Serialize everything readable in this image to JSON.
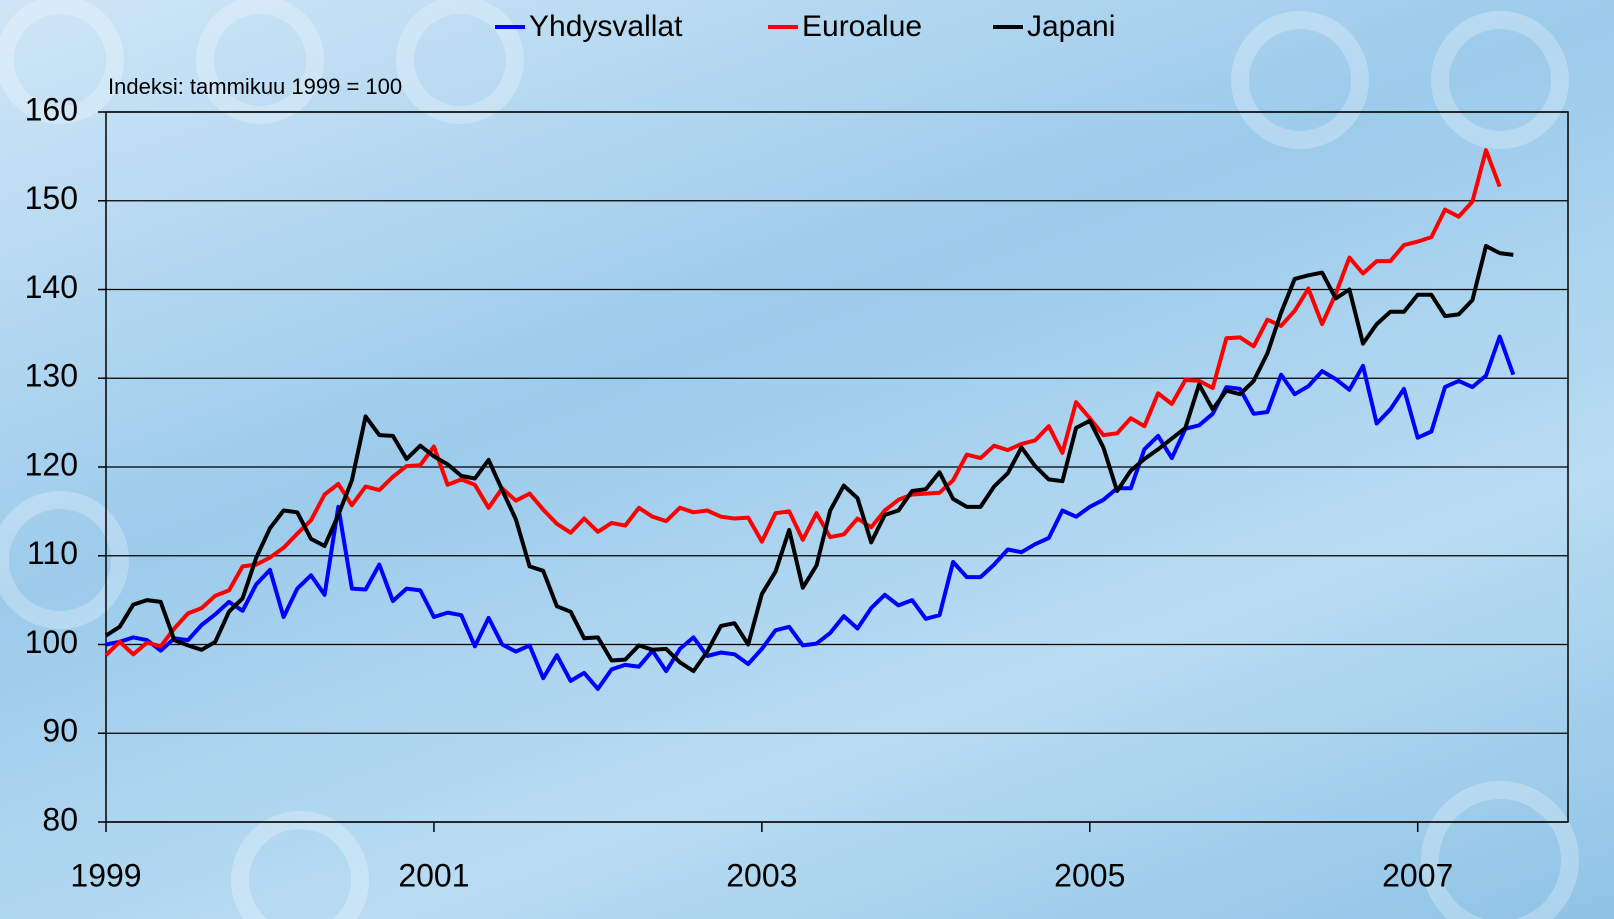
{
  "chart_data": {
    "type": "line",
    "subtitle": "Indeksi: tammikuu 1999 = 100",
    "categories": [
      "1999",
      null,
      null,
      null,
      null,
      null,
      null,
      null,
      null,
      null,
      null,
      null,
      null,
      null,
      null,
      null,
      null,
      null,
      null,
      null,
      null,
      null,
      null,
      null,
      "2001",
      null,
      null,
      null,
      null,
      null,
      null,
      null,
      null,
      null,
      null,
      null,
      null,
      null,
      null,
      null,
      null,
      null,
      null,
      null,
      null,
      null,
      null,
      null,
      "2003",
      null,
      null,
      null,
      null,
      null,
      null,
      null,
      null,
      null,
      null,
      null,
      null,
      null,
      null,
      null,
      null,
      null,
      null,
      null,
      null,
      null,
      null,
      null,
      "2005",
      null,
      null,
      null,
      null,
      null,
      null,
      null,
      null,
      null,
      null,
      null,
      null,
      null,
      null,
      null,
      null,
      null,
      null,
      null,
      null,
      null,
      null,
      null,
      "2007",
      null,
      null,
      null,
      null,
      null,
      null,
      null
    ],
    "series": [
      {
        "name": "Yhdysvallat",
        "color": "#0000ff",
        "values": [
          100,
          100.3,
          100.8,
          100.5,
          99.3,
          100.7,
          100.5,
          102.2,
          103.4,
          104.8,
          103.8,
          106.8,
          108.4,
          103.1,
          106.3,
          107.8,
          105.6,
          115.5,
          106.3,
          106.2,
          109.0,
          104.9,
          106.3,
          106.1,
          103.1,
          103.6,
          103.3,
          99.8,
          103.0,
          100.0,
          99.2,
          99.9,
          96.2,
          98.8,
          95.9,
          96.8,
          95.0,
          97.2,
          97.7,
          97.5,
          99.3,
          97.0,
          99.5,
          100.8,
          98.7,
          99.1,
          98.9,
          97.8,
          99.5,
          101.6,
          102.0,
          99.9,
          100.1,
          101.3,
          103.2,
          101.8,
          104.1,
          105.6,
          104.4,
          105.0,
          102.9,
          103.3,
          109.3,
          107.6,
          107.6,
          109.0,
          110.7,
          110.4,
          111.3,
          112.0,
          115.1,
          114.4,
          115.5,
          116.3,
          117.6,
          117.6,
          122.0,
          123.5,
          121.0,
          124.3,
          124.7,
          126.0,
          129.0,
          128.8,
          126.0,
          126.2,
          130.4,
          128.2,
          129.1,
          130.8,
          129.9,
          128.7,
          131.4,
          124.9,
          126.5,
          128.8,
          123.3,
          124.0,
          129.0,
          129.7,
          129.0,
          130.3,
          134.7,
          130.4
        ]
      },
      {
        "name": "Euroalue",
        "color": "#ff0000",
        "values": [
          98.8,
          100.3,
          98.9,
          100.2,
          99.8,
          101.8,
          103.5,
          104.1,
          105.5,
          106.1,
          108.8,
          109.0,
          109.8,
          110.9,
          112.5,
          114.0,
          116.9,
          118.1,
          115.7,
          117.8,
          117.4,
          118.9,
          120.1,
          120.2,
          122.3,
          118.0,
          118.6,
          118.0,
          115.4,
          117.6,
          116.2,
          117.0,
          115.2,
          113.6,
          112.6,
          114.2,
          112.7,
          113.7,
          113.4,
          115.4,
          114.4,
          113.9,
          115.4,
          114.9,
          115.1,
          114.4,
          114.2,
          114.3,
          111.6,
          114.8,
          115.0,
          111.8,
          114.8,
          112.1,
          112.4,
          114.2,
          113.2,
          115.1,
          116.3,
          116.9,
          117.0,
          117.1,
          118.5,
          121.4,
          121.0,
          122.4,
          121.9,
          122.6,
          123.0,
          124.6,
          121.6,
          127.3,
          125.5,
          123.6,
          123.8,
          125.5,
          124.6,
          128.3,
          127.1,
          129.8,
          129.7,
          128.9,
          134.5,
          134.6,
          133.6,
          136.6,
          135.9,
          137.6,
          140.1,
          136.1,
          139.5,
          143.6,
          141.8,
          143.2,
          143.2,
          145.0,
          145.4,
          145.9,
          149.0,
          148.2,
          149.9,
          155.7,
          151.6,
          null
        ]
      },
      {
        "name": "Japani",
        "color": "#000000",
        "values": [
          101.0,
          102.0,
          104.5,
          105.0,
          104.8,
          100.5,
          99.9,
          99.4,
          100.3,
          103.7,
          105.2,
          109.8,
          113.1,
          115.1,
          114.9,
          111.9,
          111.1,
          114.6,
          118.5,
          125.7,
          123.6,
          123.5,
          120.9,
          122.4,
          121.2,
          120.3,
          119.0,
          118.7,
          120.8,
          117.4,
          114.1,
          108.8,
          108.3,
          104.3,
          103.7,
          100.7,
          100.8,
          98.2,
          98.3,
          99.9,
          99.4,
          99.5,
          98.0,
          97.0,
          99.2,
          102.1,
          102.4,
          100.0,
          105.7,
          108.2,
          112.9,
          106.4,
          108.9,
          115.1,
          117.9,
          116.5,
          111.5,
          114.6,
          115.1,
          117.3,
          117.5,
          119.4,
          116.4,
          115.5,
          115.5,
          117.8,
          119.3,
          122.2,
          120.1,
          118.6,
          118.4,
          124.4,
          125.2,
          122.2,
          117.3,
          119.6,
          120.9,
          122.0,
          123.2,
          124.4,
          129.3,
          126.5,
          128.6,
          128.2,
          129.7,
          132.8,
          137.4,
          141.2,
          141.6,
          141.9,
          139.0,
          140.0,
          133.9,
          136.1,
          137.5,
          137.5,
          139.4,
          139.4,
          137.0,
          137.2,
          138.8,
          144.9,
          144.1,
          143.9
        ]
      }
    ],
    "ylim": [
      80,
      160
    ],
    "yticks": [
      80,
      90,
      100,
      110,
      120,
      130,
      140,
      150,
      160
    ],
    "grid": true,
    "legend": "top"
  }
}
